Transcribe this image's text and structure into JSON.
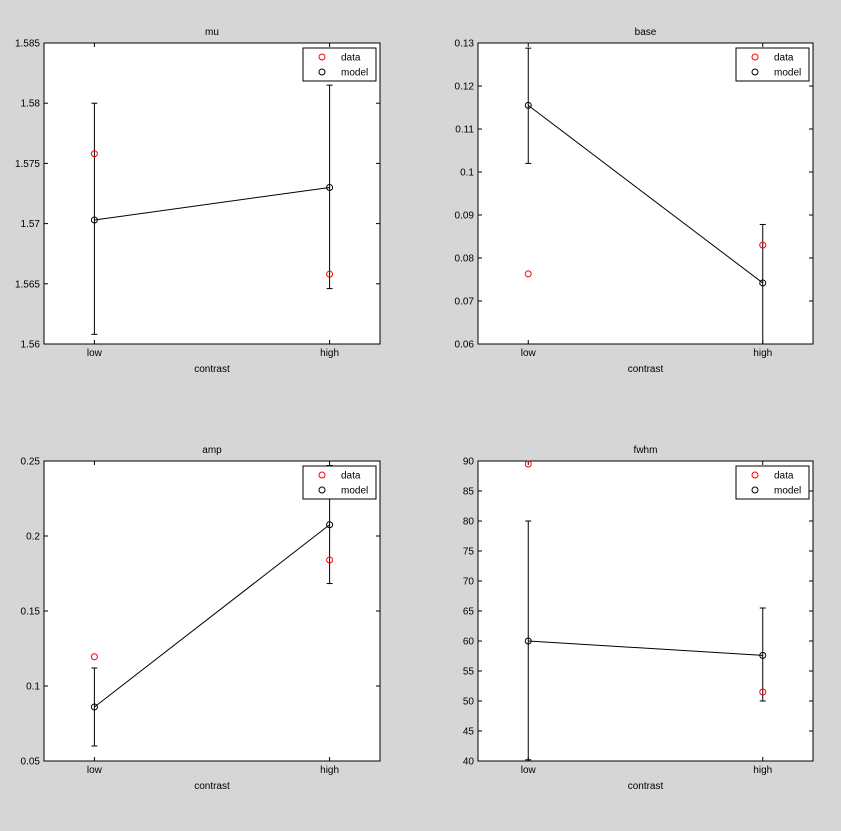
{
  "colors": {
    "figure_bg": "#d6d6d6",
    "axes_bg": "#ffffff",
    "data_marker": "#ff0000",
    "model_marker": "#000000"
  },
  "legend": {
    "data_label": "data",
    "model_label": "model",
    "placement": "top-right"
  },
  "chart_data": [
    {
      "type": "scatter",
      "title": "mu",
      "xlabel": "contrast",
      "ylabel": "",
      "categories": [
        "low",
        "high"
      ],
      "ylim": [
        1.56,
        1.585
      ],
      "yticks": [
        1.56,
        1.565,
        1.57,
        1.575,
        1.58,
        1.585
      ],
      "ytick_labels": [
        "1.56",
        "1.565",
        "1.57",
        "1.575",
        "1.58",
        "1.585"
      ],
      "series": [
        {
          "name": "data",
          "values": [
            1.5758,
            1.5658
          ]
        },
        {
          "name": "model",
          "values": [
            1.5703,
            1.573
          ],
          "error_low": [
            1.5608,
            1.5646
          ],
          "error_high": [
            1.58,
            1.5815
          ]
        }
      ]
    },
    {
      "type": "scatter",
      "title": "base",
      "xlabel": "contrast",
      "ylabel": "",
      "categories": [
        "low",
        "high"
      ],
      "ylim": [
        0.06,
        0.13
      ],
      "yticks": [
        0.06,
        0.07,
        0.08,
        0.09,
        0.1,
        0.11,
        0.12,
        0.13
      ],
      "ytick_labels": [
        "0.06",
        "0.07",
        "0.08",
        "0.09",
        "0.1",
        "0.11",
        "0.12",
        "0.13"
      ],
      "series": [
        {
          "name": "data",
          "values": [
            0.0763,
            0.083
          ]
        },
        {
          "name": "model",
          "values": [
            0.1155,
            0.0742
          ],
          "error_low": [
            0.102,
            0.06
          ],
          "error_high": [
            0.1288,
            0.0878
          ]
        }
      ]
    },
    {
      "type": "scatter",
      "title": "amp",
      "xlabel": "contrast",
      "ylabel": "",
      "categories": [
        "low",
        "high"
      ],
      "ylim": [
        0.05,
        0.25
      ],
      "yticks": [
        0.05,
        0.1,
        0.15,
        0.2,
        0.25
      ],
      "ytick_labels": [
        "0.05",
        "0.1",
        "0.15",
        "0.2",
        "0.25"
      ],
      "series": [
        {
          "name": "data",
          "values": [
            0.1195,
            0.184
          ]
        },
        {
          "name": "model",
          "values": [
            0.086,
            0.2075
          ],
          "error_low": [
            0.06,
            0.1683
          ],
          "error_high": [
            0.112,
            0.247
          ]
        }
      ]
    },
    {
      "type": "scatter",
      "title": "fwhm",
      "xlabel": "contrast",
      "ylabel": "",
      "categories": [
        "low",
        "high"
      ],
      "ylim": [
        40,
        90
      ],
      "yticks": [
        40,
        45,
        50,
        55,
        60,
        65,
        70,
        75,
        80,
        85,
        90
      ],
      "ytick_labels": [
        "40",
        "45",
        "50",
        "55",
        "60",
        "65",
        "70",
        "75",
        "80",
        "85",
        "90"
      ],
      "series": [
        {
          "name": "data",
          "values": [
            89.5,
            51.5
          ]
        },
        {
          "name": "model",
          "values": [
            60.0,
            57.6
          ],
          "error_low": [
            40.2,
            50.0
          ],
          "error_high": [
            80.0,
            65.5
          ]
        }
      ]
    }
  ]
}
